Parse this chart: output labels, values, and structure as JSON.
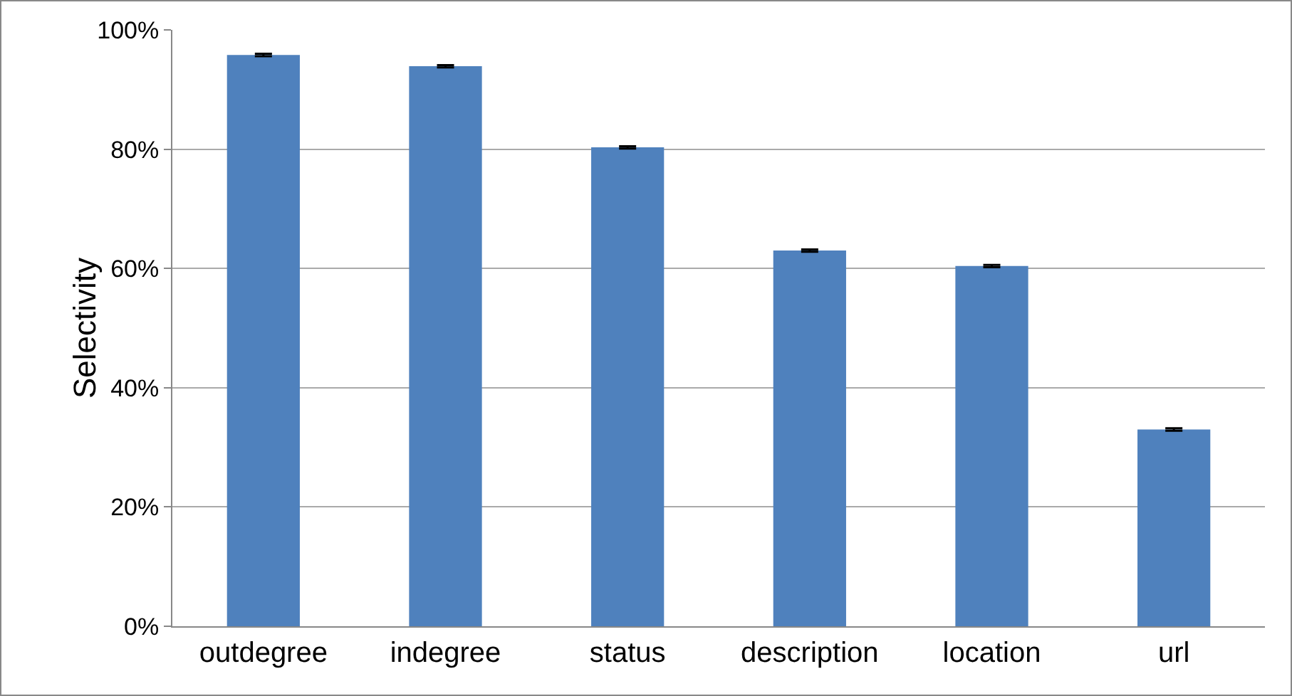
{
  "chart_data": {
    "type": "bar",
    "ylabel": "Selectivity",
    "categories": [
      "outdegree",
      "indegree",
      "status",
      "description",
      "location",
      "url"
    ],
    "values": [
      95.8,
      93.9,
      80.3,
      63.0,
      60.4,
      33.0
    ],
    "errors": [
      0.2,
      0.2,
      0.2,
      0.2,
      0.2,
      0.2
    ],
    "color": "#4f81bd",
    "ylim": [
      0,
      100
    ],
    "yticks": [
      {
        "value": 0,
        "label": "0%"
      },
      {
        "value": 20,
        "label": "20%"
      },
      {
        "value": 40,
        "label": "40%"
      },
      {
        "value": 60,
        "label": "60%"
      },
      {
        "value": 80,
        "label": "80%"
      },
      {
        "value": 100,
        "label": "100%"
      }
    ],
    "grid": "y",
    "legend": false
  }
}
